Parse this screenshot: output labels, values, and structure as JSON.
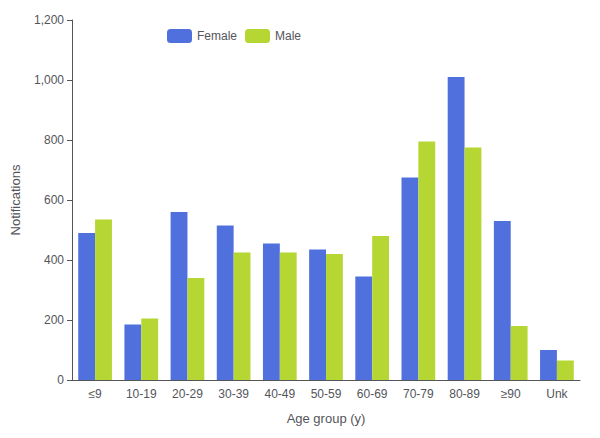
{
  "chart_data": {
    "type": "bar",
    "categories": [
      "≤9",
      "10-19",
      "20-29",
      "30-39",
      "40-49",
      "50-59",
      "60-69",
      "70-79",
      "80-89",
      "≥90",
      "Unk"
    ],
    "series": [
      {
        "name": "Female",
        "values": [
          490,
          185,
          560,
          515,
          455,
          435,
          345,
          675,
          1010,
          530,
          100
        ]
      },
      {
        "name": "Male",
        "values": [
          535,
          205,
          340,
          425,
          425,
          420,
          480,
          795,
          775,
          180,
          65
        ]
      }
    ],
    "xlabel": "Age group (y)",
    "ylabel": "Notifications",
    "ylim": [
      0,
      1200
    ],
    "yticks": [
      0,
      200,
      400,
      600,
      {
        "value": 800,
        "label": "800"
      },
      {
        "value": 1000,
        "label": "1,000"
      },
      {
        "value": 1200,
        "label": "1,200"
      }
    ],
    "grid": false,
    "legend": "upper left"
  }
}
